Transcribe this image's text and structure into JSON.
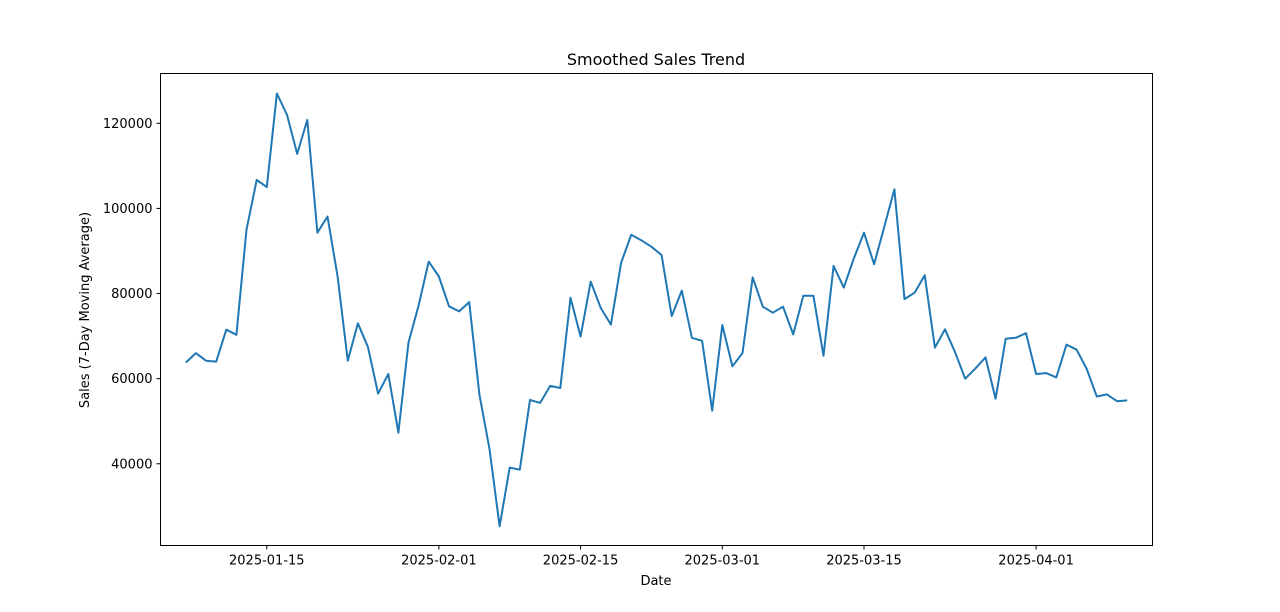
{
  "chart_data": {
    "type": "line",
    "title": "Smoothed Sales Trend",
    "xlabel": "Date",
    "ylabel": "Sales (7-Day Moving Average)",
    "x_start": "2025-01-07",
    "x_step_days": 1,
    "x_ticks": [
      "2025-01-15",
      "2025-02-01",
      "2025-02-15",
      "2025-03-01",
      "2025-03-15",
      "2025-04-01"
    ],
    "y_ticks": [
      40000,
      60000,
      80000,
      100000,
      120000
    ],
    "xlim": [
      "2025-01-04T12:00",
      "2025-04-12T12:00"
    ],
    "ylim": [
      20800,
      131700
    ],
    "grid": false,
    "line_color": "#1f77b4",
    "series": [
      {
        "values": [
          63800,
          66000,
          64200,
          64000,
          71500,
          70300,
          95000,
          106700,
          105000,
          127000,
          122000,
          112800,
          120800,
          94300,
          98100,
          84000,
          64200,
          73000,
          67400,
          56500,
          61100,
          47300,
          68500,
          77200,
          87500,
          84000,
          77000,
          75800,
          78000,
          56300,
          43500,
          25300,
          39100,
          38600,
          55000,
          54300,
          58300,
          57800,
          79000,
          69900,
          82800,
          76600,
          72700,
          87200,
          93800,
          92500,
          91000,
          89000,
          74700,
          80700,
          69600,
          68900,
          52500,
          72600,
          62900,
          66000,
          83800,
          76900,
          75500,
          76900,
          70400,
          79500,
          79500,
          65400,
          86500,
          81400,
          88300,
          94300,
          86900,
          95700,
          104500,
          78700,
          80200,
          84300,
          67300,
          71600,
          66200,
          60000,
          62400,
          65000,
          55300,
          69400,
          69600,
          70700,
          61100,
          61300,
          60300,
          68000,
          66800,
          62300,
          55800,
          56300,
          54700,
          54900
        ]
      }
    ]
  }
}
